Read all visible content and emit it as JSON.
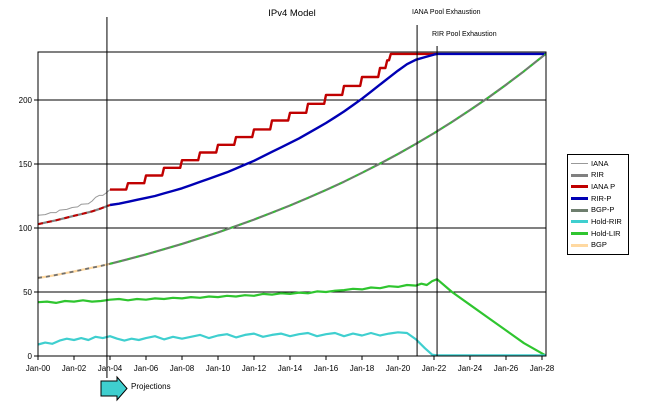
{
  "title": "IPv4 Model",
  "annotations": {
    "iana_pool": {
      "label": "IANA Pool Exhaustion",
      "year": 2021.06
    },
    "rir_pool": {
      "label": "RIR Pool Exhaustion",
      "year": 2022.17
    },
    "projections": {
      "label": "Projections",
      "year": 2003.83
    }
  },
  "chart_data": {
    "type": "line",
    "title": "IPv4 Model",
    "xlabel": "",
    "ylabel": "",
    "x_range": [
      2000,
      2028.2
    ],
    "ylim": [
      0,
      237.5
    ],
    "grid": "horizontal",
    "legend_position": "right",
    "y_ticks": [
      0,
      50,
      100,
      150,
      200
    ],
    "x_ticks": [
      [
        2000,
        "Jan-00"
      ],
      [
        2002,
        "Jan-02"
      ],
      [
        2004,
        "Jan-04"
      ],
      [
        2006,
        "Jan-06"
      ],
      [
        2008,
        "Jan-08"
      ],
      [
        2010,
        "Jan-10"
      ],
      [
        2012,
        "Jan-12"
      ],
      [
        2014,
        "Jan-14"
      ],
      [
        2016,
        "Jan-16"
      ],
      [
        2018,
        "Jan-18"
      ],
      [
        2020,
        "Jan-20"
      ],
      [
        2022,
        "Jan-22"
      ],
      [
        2024,
        "Jan-24"
      ],
      [
        2026,
        "Jan-26"
      ],
      [
        2028,
        "Jan-28"
      ]
    ],
    "series": [
      {
        "label": "IANA",
        "color": "#999999",
        "width": 1,
        "z": 4,
        "points": [
          [
            2000,
            110
          ],
          [
            2000.4,
            110.5
          ],
          [
            2000.7,
            112
          ],
          [
            2001,
            112
          ],
          [
            2001.2,
            114
          ],
          [
            2001.6,
            114.5
          ],
          [
            2001.9,
            116
          ],
          [
            2002.2,
            116.5
          ],
          [
            2002.4,
            118.5
          ],
          [
            2002.8,
            119
          ],
          [
            2003,
            121
          ],
          [
            2003.2,
            124
          ],
          [
            2003.4,
            125.5
          ],
          [
            2003.6,
            125.5
          ],
          [
            2003.8,
            127.5
          ],
          [
            2004,
            130
          ]
        ]
      },
      {
        "label": "RIR",
        "color": "#808080",
        "width": 2.2,
        "z": 1,
        "points": [
          [
            2000,
            103
          ],
          [
            2000.5,
            104.5
          ],
          [
            2001,
            106
          ],
          [
            2001.5,
            107.7
          ],
          [
            2002,
            109.5
          ],
          [
            2002.5,
            111.2
          ],
          [
            2003,
            113
          ],
          [
            2003.5,
            115.3
          ],
          [
            2004,
            118
          ]
        ]
      },
      {
        "label": "IANA P",
        "color": "#C00000",
        "width": 2.4,
        "z": 7,
        "points": [
          [
            2004,
            130
          ],
          [
            2004.9,
            130
          ],
          [
            2005,
            135
          ],
          [
            2005.9,
            135
          ],
          [
            2006,
            141
          ],
          [
            2006.9,
            141
          ],
          [
            2007,
            147
          ],
          [
            2007.9,
            147
          ],
          [
            2008,
            153
          ],
          [
            2008.9,
            153
          ],
          [
            2009,
            159
          ],
          [
            2009.9,
            159
          ],
          [
            2010,
            165
          ],
          [
            2010.9,
            165
          ],
          [
            2011,
            171
          ],
          [
            2011.9,
            171
          ],
          [
            2012,
            177
          ],
          [
            2012.9,
            177
          ],
          [
            2013,
            184
          ],
          [
            2013.9,
            184
          ],
          [
            2014,
            190
          ],
          [
            2014.9,
            190
          ],
          [
            2015,
            197
          ],
          [
            2015.9,
            197
          ],
          [
            2016,
            204
          ],
          [
            2016.9,
            204
          ],
          [
            2017,
            211
          ],
          [
            2017.9,
            211
          ],
          [
            2018,
            218
          ],
          [
            2018.9,
            218
          ],
          [
            2019,
            225
          ],
          [
            2019.3,
            225
          ],
          [
            2019.4,
            231
          ],
          [
            2019.5,
            231
          ],
          [
            2019.6,
            236
          ],
          [
            2022.17,
            236
          ]
        ]
      },
      {
        "label": "RIR-P",
        "color": "#0000B4",
        "width": 2.4,
        "z": 8,
        "points": [
          [
            2004,
            118
          ],
          [
            2004.5,
            119
          ],
          [
            2005,
            120.5
          ],
          [
            2005.5,
            122
          ],
          [
            2006,
            123.5
          ],
          [
            2006.5,
            125
          ],
          [
            2007,
            127
          ],
          [
            2007.5,
            129
          ],
          [
            2008,
            131
          ],
          [
            2008.5,
            133.5
          ],
          [
            2009,
            136
          ],
          [
            2009.5,
            138.5
          ],
          [
            2010,
            141
          ],
          [
            2010.5,
            143.5
          ],
          [
            2011,
            146.5
          ],
          [
            2011.5,
            149.5
          ],
          [
            2012,
            152.5
          ],
          [
            2012.5,
            156
          ],
          [
            2013,
            159.5
          ],
          [
            2013.5,
            163
          ],
          [
            2014,
            166.5
          ],
          [
            2014.5,
            170
          ],
          [
            2015,
            174
          ],
          [
            2015.5,
            178
          ],
          [
            2016,
            182
          ],
          [
            2016.5,
            186.5
          ],
          [
            2017,
            191
          ],
          [
            2017.5,
            196
          ],
          [
            2018,
            201
          ],
          [
            2018.5,
            206.5
          ],
          [
            2019,
            212
          ],
          [
            2019.5,
            217.5
          ],
          [
            2020,
            223
          ],
          [
            2020.5,
            228
          ],
          [
            2021,
            231.5
          ],
          [
            2021.5,
            233.5
          ],
          [
            2022,
            235.5
          ],
          [
            2022.17,
            236
          ],
          [
            2028.2,
            236
          ]
        ]
      },
      {
        "label": "BGP-P",
        "color": "#6E7E6E",
        "width": 2.2,
        "z": 3,
        "points": [
          [
            2004,
            72
          ],
          [
            2005,
            75.6
          ],
          [
            2006,
            79.4
          ],
          [
            2007,
            83.4
          ],
          [
            2008,
            87.6
          ],
          [
            2009,
            92
          ],
          [
            2010,
            96.6
          ],
          [
            2011,
            101.5
          ],
          [
            2012,
            106.6
          ],
          [
            2013,
            112
          ],
          [
            2014,
            117.6
          ],
          [
            2015,
            123.5
          ],
          [
            2016,
            129.7
          ],
          [
            2017,
            136.2
          ],
          [
            2018,
            143.1
          ],
          [
            2019,
            150.3
          ],
          [
            2020,
            157.8
          ],
          [
            2021,
            165.8
          ],
          [
            2022,
            174.1
          ],
          [
            2023,
            182.9
          ],
          [
            2024,
            192.1
          ],
          [
            2025,
            201.7
          ],
          [
            2026,
            211.9
          ],
          [
            2027,
            222.5
          ],
          [
            2028,
            233.7
          ],
          [
            2028.2,
            236
          ]
        ]
      },
      {
        "label": "Hold-RIR",
        "color": "#3FCFCF",
        "width": 2.2,
        "z": 6,
        "points": [
          [
            2000,
            9
          ],
          [
            2000.4,
            10.5
          ],
          [
            2000.8,
            9.5
          ],
          [
            2001.2,
            12
          ],
          [
            2001.6,
            13.5
          ],
          [
            2002,
            12.5
          ],
          [
            2002.4,
            14
          ],
          [
            2002.8,
            12.5
          ],
          [
            2003.2,
            15
          ],
          [
            2003.6,
            14
          ],
          [
            2004,
            15.5
          ],
          [
            2004.4,
            13.5
          ],
          [
            2004.8,
            12
          ],
          [
            2005.2,
            13.5
          ],
          [
            2005.6,
            12.5
          ],
          [
            2006,
            14
          ],
          [
            2006.5,
            15.5
          ],
          [
            2007,
            13
          ],
          [
            2007.5,
            15
          ],
          [
            2008,
            13.5
          ],
          [
            2008.5,
            15
          ],
          [
            2009,
            16.5
          ],
          [
            2009.5,
            14
          ],
          [
            2010,
            16
          ],
          [
            2010.5,
            17
          ],
          [
            2011,
            14.5
          ],
          [
            2011.5,
            16.5
          ],
          [
            2012,
            17.5
          ],
          [
            2012.5,
            15
          ],
          [
            2013,
            16.5
          ],
          [
            2013.5,
            17.5
          ],
          [
            2014,
            15.5
          ],
          [
            2014.5,
            17
          ],
          [
            2015,
            18
          ],
          [
            2015.5,
            15.5
          ],
          [
            2016,
            17
          ],
          [
            2016.5,
            18
          ],
          [
            2017,
            15.5
          ],
          [
            2017.5,
            17.5
          ],
          [
            2018,
            16
          ],
          [
            2018.5,
            18
          ],
          [
            2019,
            16
          ],
          [
            2019.5,
            17.5
          ],
          [
            2020,
            18.5
          ],
          [
            2020.5,
            18
          ],
          [
            2021,
            13
          ],
          [
            2021.5,
            6
          ],
          [
            2021.9,
            1
          ],
          [
            2022.17,
            0.5
          ],
          [
            2028.2,
            0.5
          ]
        ]
      },
      {
        "label": "Hold-LIR",
        "color": "#2FC52F",
        "width": 2.2,
        "z": 5,
        "points": [
          [
            2000,
            42
          ],
          [
            2000.5,
            42.5
          ],
          [
            2001,
            41.5
          ],
          [
            2001.5,
            43
          ],
          [
            2002,
            42.5
          ],
          [
            2002.5,
            43.5
          ],
          [
            2003,
            42.5
          ],
          [
            2003.5,
            43
          ],
          [
            2004,
            44
          ],
          [
            2004.5,
            44.5
          ],
          [
            2005,
            43.5
          ],
          [
            2005.5,
            44.5
          ],
          [
            2006,
            44
          ],
          [
            2006.5,
            45
          ],
          [
            2007,
            44.5
          ],
          [
            2007.5,
            45.5
          ],
          [
            2008,
            45
          ],
          [
            2008.5,
            46
          ],
          [
            2009,
            45.5
          ],
          [
            2009.5,
            46.5
          ],
          [
            2010,
            46
          ],
          [
            2010.5,
            47
          ],
          [
            2011,
            46.5
          ],
          [
            2011.5,
            47.5
          ],
          [
            2012,
            47
          ],
          [
            2012.5,
            48.5
          ],
          [
            2013,
            48
          ],
          [
            2013.5,
            49
          ],
          [
            2014,
            48.5
          ],
          [
            2014.5,
            49.5
          ],
          [
            2015,
            49
          ],
          [
            2015.5,
            50.5
          ],
          [
            2016,
            50
          ],
          [
            2016.5,
            51
          ],
          [
            2017,
            51.5
          ],
          [
            2017.5,
            52.5
          ],
          [
            2018,
            52
          ],
          [
            2018.5,
            53.5
          ],
          [
            2019,
            53
          ],
          [
            2019.5,
            54.5
          ],
          [
            2020,
            54
          ],
          [
            2020.5,
            55.5
          ],
          [
            2021,
            55
          ],
          [
            2021.3,
            56.5
          ],
          [
            2021.6,
            55.5
          ],
          [
            2021.9,
            58.5
          ],
          [
            2022.17,
            60
          ],
          [
            2023,
            50
          ],
          [
            2024,
            40
          ],
          [
            2025,
            30
          ],
          [
            2026,
            20
          ],
          [
            2027,
            10
          ],
          [
            2028.2,
            0.5
          ]
        ]
      },
      {
        "label": "BGP",
        "color": "#FFD9A1",
        "width": 2.2,
        "z": 2,
        "points": [
          [
            2000,
            61
          ],
          [
            2000.5,
            62
          ],
          [
            2001,
            63.3
          ],
          [
            2001.5,
            64.7
          ],
          [
            2002,
            66
          ],
          [
            2002.5,
            67.5
          ],
          [
            2003,
            69
          ],
          [
            2003.5,
            70.4
          ],
          [
            2004,
            72
          ]
        ]
      }
    ],
    "overlays": [
      {
        "over": "RIR",
        "color": "#C00000",
        "width": 2,
        "dash": "5 4"
      },
      {
        "over": "BGP",
        "color": "#707070",
        "width": 1.8,
        "dash": "4 4"
      },
      {
        "over": "BGP-P",
        "color": "#2FC52F",
        "width": 1.8,
        "dash": "3 6"
      }
    ]
  }
}
